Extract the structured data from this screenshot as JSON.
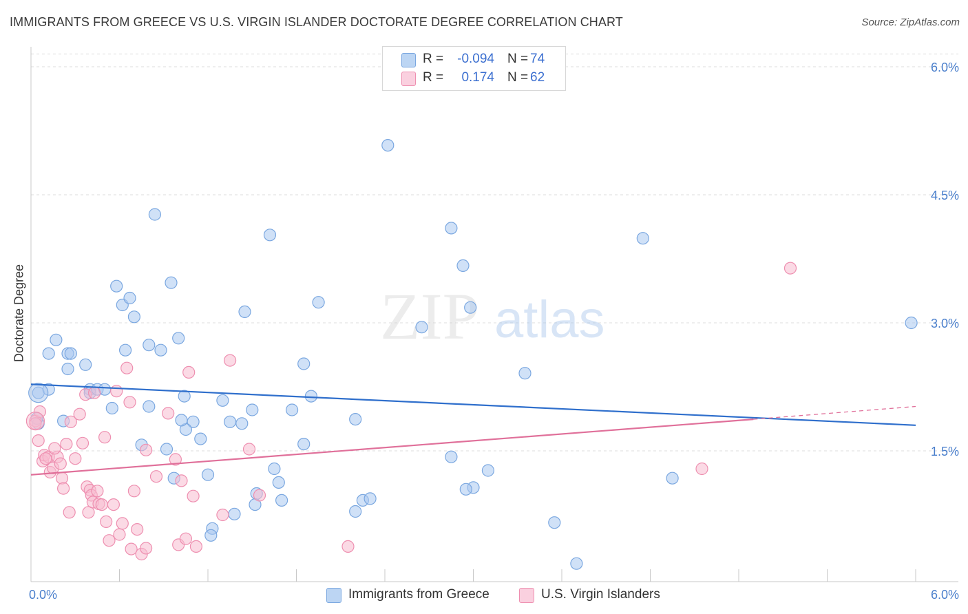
{
  "title": "IMMIGRANTS FROM GREECE VS U.S. VIRGIN ISLANDER DOCTORATE DEGREE CORRELATION CHART",
  "source": "Source: ZipAtlas.com",
  "watermark": {
    "zip": "ZIP",
    "atlas": "atlas"
  },
  "legend": {
    "rows": [
      {
        "r_label": "R =",
        "r_value": "-0.094",
        "n_label": "N =",
        "n_value": "74"
      },
      {
        "r_label": "R =",
        "r_value": "0.174",
        "n_label": "N =",
        "n_value": "62"
      }
    ]
  },
  "chart_data": {
    "type": "scatter",
    "title": "IMMIGRANTS FROM GREECE VS U.S. VIRGIN ISLANDER DOCTORATE DEGREE CORRELATION CHART",
    "xlabel": "",
    "ylabel": "Doctorate Degree",
    "xlim": [
      0,
      6.0
    ],
    "ylim": [
      0,
      6.2
    ],
    "x_tick_labels": [
      "0.0%",
      "6.0%"
    ],
    "y_ticks": [
      1.5,
      3.0,
      4.5,
      6.0
    ],
    "y_tick_labels": [
      "1.5%",
      "3.0%",
      "4.5%",
      "6.0%"
    ],
    "grid": true,
    "legend_position": "top-center",
    "series": [
      {
        "name": "Immigrants from Greece",
        "color": "#a9c8f0",
        "stroke": "#7aa7e0",
        "r": -0.094,
        "n": 74,
        "trend": {
          "x0": 0.0,
          "y0": 2.28,
          "x1": 6.0,
          "y1": 1.8
        },
        "points": [
          [
            0.05,
            2.18
          ],
          [
            0.12,
            2.22
          ],
          [
            0.17,
            2.8
          ],
          [
            0.25,
            2.64
          ],
          [
            0.27,
            2.64
          ],
          [
            0.12,
            2.64
          ],
          [
            0.37,
            2.51
          ],
          [
            0.25,
            2.46
          ],
          [
            0.4,
            2.22
          ],
          [
            0.4,
            2.18
          ],
          [
            0.45,
            2.22
          ],
          [
            0.5,
            2.22
          ],
          [
            0.55,
            2.0
          ],
          [
            0.58,
            3.43
          ],
          [
            0.62,
            3.21
          ],
          [
            0.67,
            3.29
          ],
          [
            0.7,
            3.07
          ],
          [
            0.64,
            2.68
          ],
          [
            0.8,
            2.74
          ],
          [
            0.88,
            2.68
          ],
          [
            0.84,
            4.27
          ],
          [
            0.95,
            3.47
          ],
          [
            1.0,
            2.82
          ],
          [
            1.04,
            2.14
          ],
          [
            1.1,
            1.84
          ],
          [
            1.05,
            1.75
          ],
          [
            0.8,
            2.02
          ],
          [
            0.75,
            1.57
          ],
          [
            0.92,
            1.52
          ],
          [
            0.97,
            1.18
          ],
          [
            1.15,
            1.64
          ],
          [
            1.2,
            1.22
          ],
          [
            1.3,
            2.09
          ],
          [
            1.35,
            1.84
          ],
          [
            1.43,
            1.82
          ],
          [
            1.45,
            3.13
          ],
          [
            1.5,
            1.98
          ],
          [
            1.62,
            4.03
          ],
          [
            1.85,
            2.52
          ],
          [
            1.77,
            1.98
          ],
          [
            1.85,
            1.58
          ],
          [
            1.9,
            2.14
          ],
          [
            1.95,
            3.24
          ],
          [
            2.2,
            1.87
          ],
          [
            2.42,
            5.08
          ],
          [
            2.65,
            2.95
          ],
          [
            2.85,
            4.11
          ],
          [
            2.93,
            3.67
          ],
          [
            2.98,
            3.18
          ],
          [
            2.85,
            1.43
          ],
          [
            3.0,
            1.07
          ],
          [
            3.1,
            1.27
          ],
          [
            2.95,
            1.05
          ],
          [
            3.35,
            2.41
          ],
          [
            3.55,
            0.66
          ],
          [
            3.7,
            0.18
          ],
          [
            4.15,
            3.99
          ],
          [
            4.35,
            1.18
          ],
          [
            5.97,
            3.0
          ],
          [
            1.65,
            1.29
          ],
          [
            1.68,
            1.13
          ],
          [
            1.53,
            1.0
          ],
          [
            1.52,
            0.87
          ],
          [
            1.7,
            0.92
          ],
          [
            1.38,
            0.76
          ],
          [
            1.23,
            0.59
          ],
          [
            1.22,
            0.51
          ],
          [
            2.25,
            0.92
          ],
          [
            2.3,
            0.94
          ],
          [
            2.2,
            0.79
          ],
          [
            0.22,
            1.85
          ],
          [
            1.02,
            1.86
          ],
          [
            0.05,
            1.82
          ],
          [
            0.04,
            1.88
          ]
        ]
      },
      {
        "name": "U.S. Virgin Islanders",
        "color": "#f7bcd0",
        "stroke": "#ee8fb0",
        "r": 0.174,
        "n": 62,
        "trend": {
          "x0": 0.0,
          "y0": 1.22,
          "x1": 4.9,
          "y1": 1.87
        },
        "trend_dashed": {
          "x0": 4.9,
          "y0": 1.87,
          "x1": 6.0,
          "y1": 2.02
        },
        "points": [
          [
            0.03,
            1.85
          ],
          [
            0.05,
            1.62
          ],
          [
            0.08,
            1.38
          ],
          [
            0.09,
            1.45
          ],
          [
            0.12,
            1.43
          ],
          [
            0.13,
            1.25
          ],
          [
            0.15,
            1.3
          ],
          [
            0.18,
            1.43
          ],
          [
            0.2,
            1.35
          ],
          [
            0.21,
            1.18
          ],
          [
            0.22,
            1.06
          ],
          [
            0.24,
            1.58
          ],
          [
            0.26,
            0.78
          ],
          [
            0.27,
            1.84
          ],
          [
            0.3,
            1.41
          ],
          [
            0.33,
            1.93
          ],
          [
            0.35,
            1.59
          ],
          [
            0.37,
            2.16
          ],
          [
            0.38,
            1.08
          ],
          [
            0.39,
            0.78
          ],
          [
            0.4,
            1.04
          ],
          [
            0.41,
            0.98
          ],
          [
            0.42,
            0.9
          ],
          [
            0.43,
            2.18
          ],
          [
            0.45,
            1.03
          ],
          [
            0.46,
            0.88
          ],
          [
            0.48,
            0.87
          ],
          [
            0.5,
            1.66
          ],
          [
            0.51,
            0.67
          ],
          [
            0.53,
            0.45
          ],
          [
            0.56,
            0.87
          ],
          [
            0.58,
            2.2
          ],
          [
            0.6,
            0.52
          ],
          [
            0.62,
            0.65
          ],
          [
            0.65,
            2.47
          ],
          [
            0.67,
            2.07
          ],
          [
            0.68,
            0.35
          ],
          [
            0.7,
            1.03
          ],
          [
            0.72,
            0.58
          ],
          [
            0.75,
            0.29
          ],
          [
            0.78,
            1.51
          ],
          [
            0.78,
            0.36
          ],
          [
            0.85,
            1.2
          ],
          [
            0.93,
            1.94
          ],
          [
            0.98,
            1.4
          ],
          [
            1.0,
            0.4
          ],
          [
            1.02,
            1.15
          ],
          [
            1.05,
            0.47
          ],
          [
            1.07,
            2.42
          ],
          [
            1.1,
            0.97
          ],
          [
            1.12,
            0.38
          ],
          [
            1.3,
            0.75
          ],
          [
            1.35,
            2.56
          ],
          [
            1.48,
            1.52
          ],
          [
            1.55,
            0.98
          ],
          [
            2.15,
            0.38
          ],
          [
            4.55,
            1.29
          ],
          [
            5.15,
            3.64
          ],
          [
            0.16,
            1.53
          ],
          [
            0.06,
            1.96
          ],
          [
            0.03,
            1.82
          ],
          [
            0.1,
            1.41
          ]
        ]
      }
    ]
  },
  "bottom_legend": {
    "items": [
      {
        "label": "Immigrants from Greece",
        "color": "#a9c8f0"
      },
      {
        "label": "U.S. Virgin Islanders",
        "color": "#f7bcd0"
      }
    ]
  }
}
